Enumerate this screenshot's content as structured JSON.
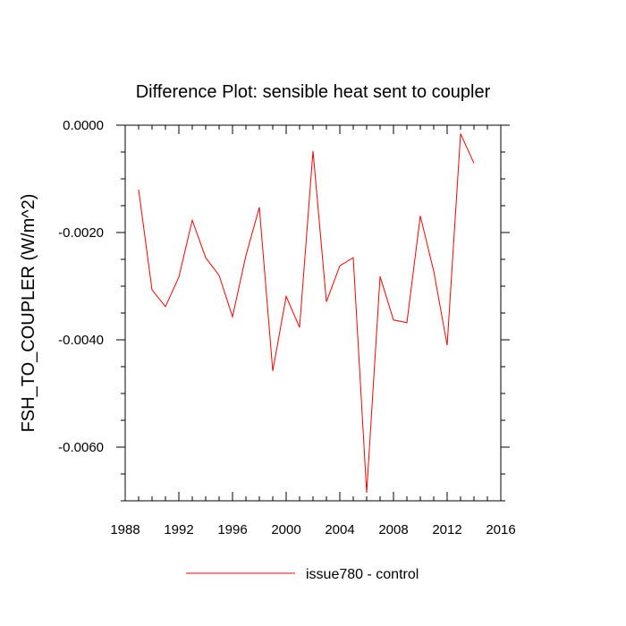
{
  "chart_data": {
    "type": "line",
    "title": "Difference Plot: sensible heat sent to coupler",
    "xlabel": "",
    "ylabel": "FSH_TO_COUPLER  (W/m^2)",
    "xlim": [
      1988,
      2016
    ],
    "ylim": [
      -0.007,
      0.0
    ],
    "x_ticks": [
      1988,
      1992,
      1996,
      2000,
      2004,
      2008,
      2012,
      2016
    ],
    "x_tick_labels": [
      "1988",
      "1992",
      "1996",
      "2000",
      "2004",
      "2008",
      "2012",
      "2016"
    ],
    "y_ticks": [
      0.0,
      -0.002,
      -0.004,
      -0.006
    ],
    "y_tick_labels": [
      "0.0000",
      "-0.0020",
      "-0.0040",
      "-0.0060"
    ],
    "legend_position": "bottom-center",
    "grid": false,
    "series": [
      {
        "name": "issue780 - control",
        "color": "#ff0000",
        "x": [
          1989,
          1990,
          1991,
          1992,
          1993,
          1994,
          1995,
          1996,
          1997,
          1998,
          1999,
          2000,
          2001,
          2002,
          2003,
          2004,
          2005,
          2006,
          2007,
          2008,
          2009,
          2010,
          2011,
          2012,
          2013,
          2014
        ],
        "y": [
          -0.0012,
          -0.00307,
          -0.00338,
          -0.00283,
          -0.00177,
          -0.00247,
          -0.0028,
          -0.00357,
          -0.00243,
          -0.00153,
          -0.00458,
          -0.00319,
          -0.00377,
          -0.00048,
          -0.00329,
          -0.00262,
          -0.00247,
          -0.00685,
          -0.00282,
          -0.00363,
          -0.00368,
          -0.00169,
          -0.00272,
          -0.0041,
          -0.00016,
          -0.00071
        ]
      }
    ]
  }
}
